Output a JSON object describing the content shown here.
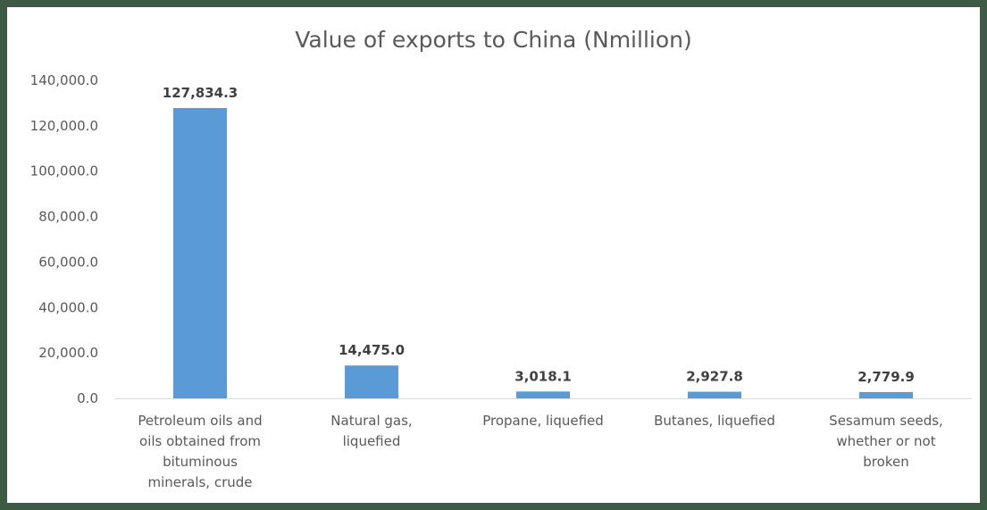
{
  "chart_data": {
    "type": "bar",
    "title": "Value of exports to China (Nmillion)",
    "xlabel": "",
    "ylabel": "",
    "ylim": [
      0,
      140000
    ],
    "yticks": [
      "0.0",
      "20,000.0",
      "40,000.0",
      "60,000.0",
      "80,000.0",
      "100,000.0",
      "120,000.0",
      "140,000.0"
    ],
    "ytick_values": [
      0,
      20000,
      40000,
      60000,
      80000,
      100000,
      120000,
      140000
    ],
    "categories": [
      [
        "Petroleum oils and",
        "oils obtained from",
        "bituminous",
        "minerals, crude"
      ],
      [
        "Natural gas,",
        "liquefied"
      ],
      [
        "Propane, liquefied"
      ],
      [
        "Butanes, liquefied"
      ],
      [
        "Sesamum seeds,",
        "whether or not",
        "broken"
      ]
    ],
    "values": [
      127834.3,
      14475.0,
      3018.1,
      2927.8,
      2779.9
    ],
    "data_labels": [
      "127,834.3",
      "14,475.0",
      "3,018.1",
      "2,927.8",
      "2,779.9"
    ],
    "bar_color": "#5b9bd5",
    "grid": false,
    "legend": "none"
  }
}
